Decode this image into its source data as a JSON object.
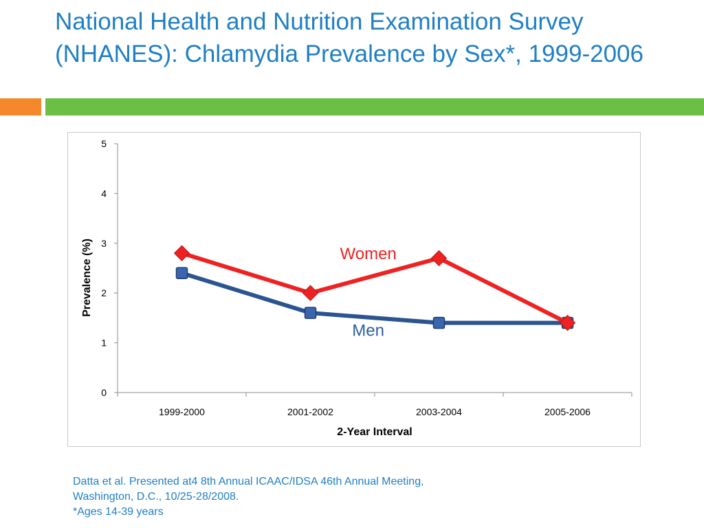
{
  "slide": {
    "title": "National Health and Nutrition Examination Survey (NHANES): Chlamydia Prevalence by Sex*, 1999-2006",
    "accent_orange": "#f5882a",
    "accent_green": "#6abf44",
    "title_color": "#1f7fc4"
  },
  "chart_data": {
    "type": "line",
    "title": "",
    "xlabel": "2-Year Interval",
    "ylabel": "Prevalence (%)",
    "categories": [
      "1999-2000",
      "2001-2002",
      "2003-2004",
      "2005-2006"
    ],
    "ylim": [
      0,
      5
    ],
    "yticks": [
      "0",
      "1",
      "2",
      "3",
      "4",
      "5"
    ],
    "grid": false,
    "legend": "none",
    "series": [
      {
        "name": "Women",
        "values": [
          2.8,
          2.0,
          2.7,
          1.4
        ],
        "color": "#ee2222",
        "marker": "diamond"
      },
      {
        "name": "Men",
        "values": [
          2.4,
          1.6,
          1.4,
          1.4
        ],
        "color": "#2a5590",
        "marker": "square"
      }
    ]
  },
  "footnote": {
    "line1": "Datta et al. Presented at4 8th Annual ICAAC/IDSA 46th Annual Meeting,",
    "line2": "Washington, D.C., 10/25-28/2008.",
    "line3": "*Ages 14-39 years"
  }
}
